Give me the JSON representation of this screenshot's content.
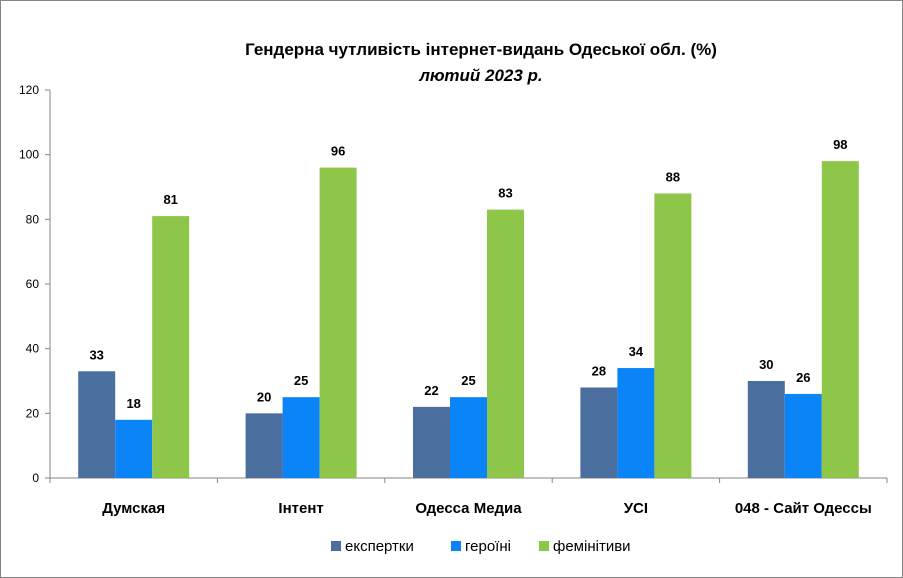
{
  "chart_data": {
    "type": "bar",
    "title": "Гендерна чутливість  інтернет-видань  Одеської обл. (%)",
    "subtitle": "лютий 2023 р.",
    "categories": [
      "Думская",
      "Інтент",
      "Одесса Медиа",
      "УСІ",
      "048 - Сайт Одессы"
    ],
    "series": [
      {
        "name": "експертки",
        "color": "#4a6f9e",
        "values": [
          33,
          20,
          22,
          28,
          30
        ]
      },
      {
        "name": "героїні",
        "color": "#0a84f7",
        "values": [
          18,
          25,
          25,
          34,
          26
        ]
      },
      {
        "name": "фемінітиви",
        "color": "#8ec64a",
        "values": [
          81,
          96,
          83,
          88,
          98
        ]
      }
    ],
    "ylim": [
      0,
      120
    ],
    "yticks": [
      0,
      20,
      40,
      60,
      80,
      100,
      120
    ],
    "grid": false,
    "legend": "bottom",
    "data_labels": true
  }
}
